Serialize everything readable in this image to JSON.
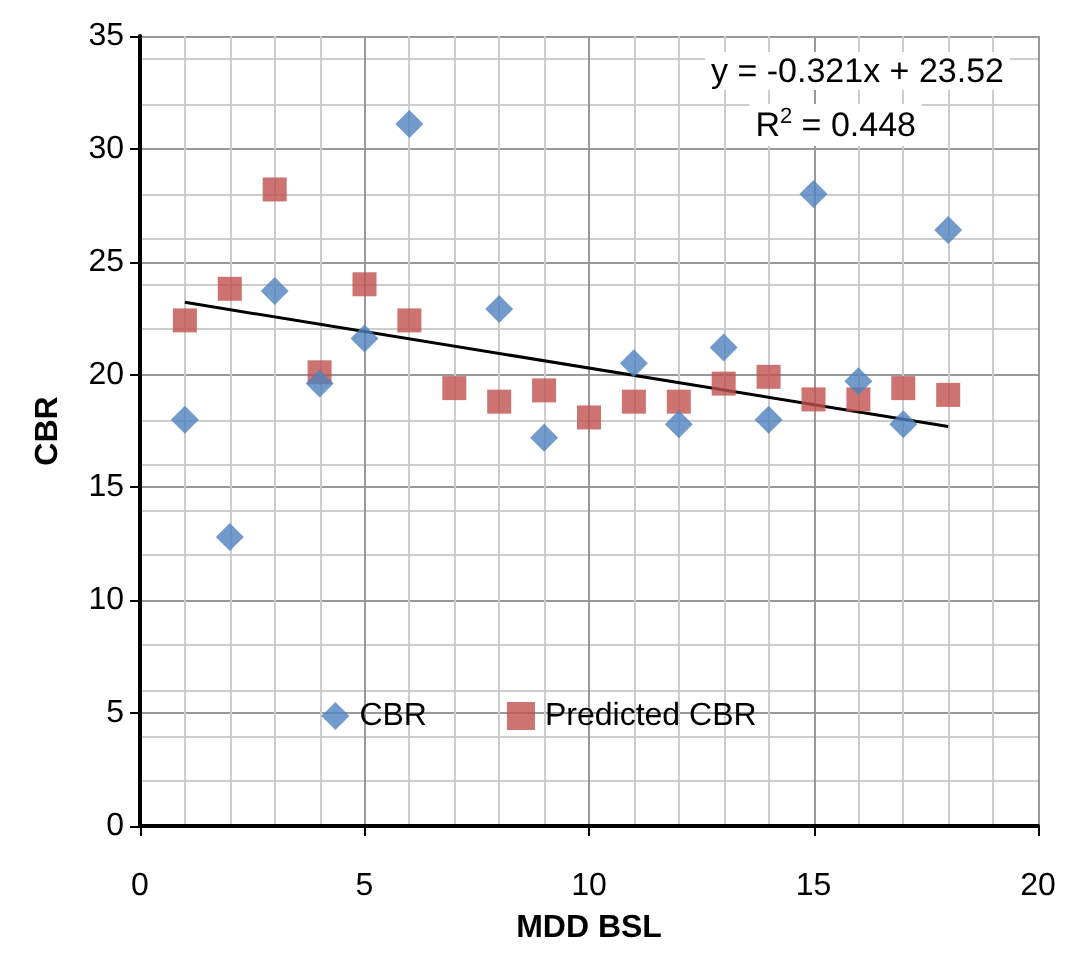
{
  "chart_data": {
    "type": "scatter",
    "xlabel": "MDD BSL",
    "ylabel": "CBR",
    "xlim": [
      0,
      20
    ],
    "xticks": [
      0,
      5,
      10,
      15,
      20
    ],
    "ylim": [
      0,
      35
    ],
    "yticks": [
      0,
      5,
      10,
      15,
      20,
      25,
      30,
      35
    ],
    "grid": true,
    "legend": "bottom",
    "series": [
      {
        "name": "CBR",
        "color": "#4f81bd",
        "marker": "diamond",
        "x": [
          1,
          2,
          3,
          4,
          5,
          6,
          8,
          9,
          11,
          12,
          13,
          14,
          15,
          16,
          17,
          18
        ],
        "values": [
          18.0,
          12.8,
          23.7,
          19.6,
          21.6,
          31.1,
          22.9,
          17.2,
          20.5,
          17.8,
          21.2,
          18.0,
          28.0,
          19.7,
          17.8,
          26.4
        ]
      },
      {
        "name": "Predicted CBR",
        "color": "#c0504d",
        "marker": "square",
        "x": [
          1,
          2,
          3,
          4,
          5,
          6,
          7,
          8,
          9,
          10,
          11,
          12,
          13,
          14,
          15,
          16,
          17,
          18
        ],
        "values": [
          22.4,
          23.8,
          28.2,
          20.1,
          24.0,
          22.4,
          19.4,
          18.8,
          19.3,
          18.1,
          18.8,
          18.8,
          19.6,
          19.9,
          18.9,
          18.9,
          19.4,
          19.1
        ]
      },
      {
        "type": "line",
        "color": "#000000",
        "marker": "none",
        "x": [
          1,
          18
        ],
        "values": [
          23.2,
          17.7
        ]
      }
    ],
    "annotations": [
      "y = -0.321x + 23.52",
      "R$^{2}$ = 0.448"
    ]
  }
}
